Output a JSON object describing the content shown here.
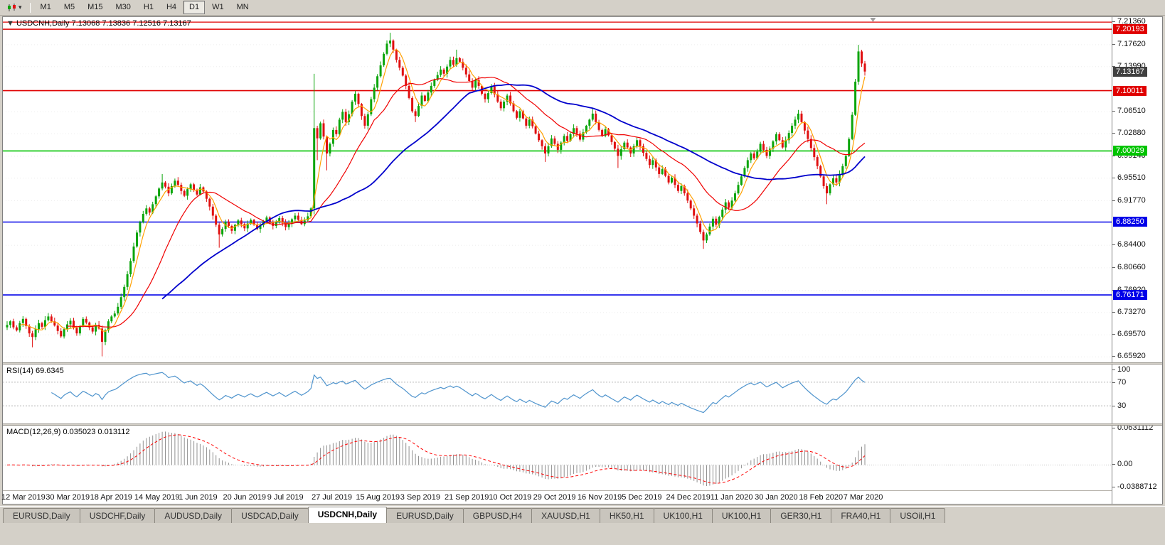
{
  "toolbar": {
    "timeframes": [
      "M1",
      "M5",
      "M15",
      "M30",
      "H1",
      "H4",
      "D1",
      "W1",
      "MN"
    ],
    "active_timeframe": "D1"
  },
  "chart": {
    "symbol": "USDCNH",
    "period": "Daily",
    "info_line": "USDCNH,Daily 7.13068 7.13836 7.12516 7.13167",
    "open": "7.13068",
    "high": "7.13836",
    "low": "7.12516",
    "close": "7.13167"
  },
  "colors": {
    "candle_up": "#0ba50b",
    "candle_down": "#e01010",
    "macd_hist": "#909090",
    "macd_signal": "#ff0000",
    "badge_current_bg": "#404040"
  },
  "chart_data": {
    "type": "candlestick+indicators",
    "symbol": "USDCNH",
    "timeframe": "Daily",
    "open0": 6.708,
    "closes": [
      6.712,
      6.718,
      6.708,
      6.703,
      6.715,
      6.722,
      6.71,
      6.698,
      6.692,
      6.705,
      6.715,
      6.709,
      6.72,
      6.726,
      6.718,
      6.711,
      6.702,
      6.693,
      6.705,
      6.713,
      6.719,
      6.707,
      6.698,
      6.71,
      6.722,
      6.716,
      6.708,
      6.701,
      6.712,
      6.706,
      6.684,
      6.703,
      6.718,
      6.726,
      6.731,
      6.742,
      6.758,
      6.775,
      6.796,
      6.818,
      6.842,
      6.865,
      6.882,
      6.896,
      6.905,
      6.898,
      6.912,
      6.925,
      6.938,
      6.948,
      6.941,
      6.93,
      6.942,
      6.951,
      6.944,
      6.934,
      6.926,
      6.937,
      6.945,
      6.936,
      6.928,
      6.94,
      6.933,
      6.921,
      6.908,
      6.893,
      6.878,
      6.862,
      6.871,
      6.883,
      6.876,
      6.868,
      6.878,
      6.885,
      6.879,
      6.872,
      6.88,
      6.886,
      6.878,
      6.871,
      6.877,
      6.884,
      6.89,
      6.883,
      6.876,
      6.882,
      6.889,
      6.881,
      6.874,
      6.88,
      6.887,
      6.893,
      6.886,
      6.879,
      6.885,
      6.892,
      6.905,
      7.038,
      7.021,
      7.046,
      7.024,
      6.996,
      7.012,
      7.035,
      7.028,
      7.052,
      7.065,
      7.048,
      7.061,
      7.082,
      7.095,
      7.078,
      7.058,
      7.042,
      7.061,
      7.086,
      7.105,
      7.124,
      7.142,
      7.161,
      7.178,
      7.183,
      7.168,
      7.151,
      7.138,
      7.125,
      7.108,
      7.088,
      7.066,
      7.058,
      7.075,
      7.092,
      7.083,
      7.097,
      7.108,
      7.118,
      7.126,
      7.135,
      7.128,
      7.14,
      7.151,
      7.143,
      7.154,
      7.148,
      7.138,
      7.127,
      7.116,
      7.105,
      7.118,
      7.108,
      7.095,
      7.086,
      7.096,
      7.107,
      7.094,
      7.082,
      7.071,
      7.082,
      7.092,
      7.079,
      7.066,
      7.055,
      7.066,
      7.054,
      7.042,
      7.052,
      7.041,
      7.029,
      7.018,
      7.008,
      6.996,
      7.008,
      7.021,
      7.012,
      7.002,
      7.014,
      7.025,
      7.017,
      7.028,
      7.038,
      7.029,
      7.019,
      7.031,
      7.042,
      7.052,
      7.062,
      7.048,
      7.035,
      7.025,
      7.036,
      7.026,
      7.015,
      7.004,
      6.992,
      7.003,
      7.014,
      7.006,
      6.996,
      7.008,
      7.018,
      7.008,
      6.997,
      6.987,
      6.977,
      6.985,
      6.973,
      6.962,
      6.97,
      6.959,
      6.948,
      6.956,
      6.944,
      6.934,
      6.942,
      6.93,
      6.918,
      6.905,
      6.893,
      6.88,
      6.866,
      6.852,
      6.862,
      6.875,
      6.888,
      6.878,
      6.891,
      6.903,
      6.915,
      6.906,
      6.918,
      6.93,
      6.944,
      6.958,
      6.972,
      6.985,
      6.996,
      6.988,
      6.999,
      7.012,
      7.002,
      6.992,
      7.004,
      7.016,
      7.028,
      7.018,
      7.006,
      7.018,
      7.03,
      7.042,
      7.052,
      7.062,
      7.048,
      7.034,
      7.02,
      7.005,
      6.99,
      6.975,
      6.958,
      6.942,
      6.93,
      6.945,
      6.955,
      6.948,
      6.962,
      6.975,
      6.992,
      7.02,
      7.06,
      7.115,
      7.165,
      7.145,
      7.1317
    ],
    "wick_overrides": {
      "8": {
        "l": 6.675
      },
      "30": {
        "l": 6.66
      },
      "49": {
        "h": 6.962
      },
      "67": {
        "l": 6.84
      },
      "97": {
        "h": 7.128,
        "l": 6.895
      },
      "98": {
        "l": 6.985
      },
      "101": {
        "l": 6.968
      },
      "121": {
        "h": 7.196
      },
      "129": {
        "l": 7.048
      },
      "142": {
        "h": 7.168
      },
      "170": {
        "l": 6.982
      },
      "185": {
        "h": 7.07
      },
      "193": {
        "l": 6.972
      },
      "220": {
        "l": 6.838
      },
      "250": {
        "h": 7.068
      },
      "259": {
        "l": 6.912
      },
      "269": {
        "h": 7.176
      },
      "271": {
        "l": 7.125
      }
    },
    "price_axis": {
      "min": 6.65,
      "max": 7.222,
      "ticks": [
        "7.21360",
        "7.17620",
        "7.13990",
        "7.06510",
        "7.02880",
        "6.99140",
        "6.95510",
        "6.91770",
        "6.84400",
        "6.80660",
        "6.76920",
        "6.73270",
        "6.69570",
        "6.65920"
      ]
    },
    "levels": [
      {
        "price": 7.2136,
        "color": "#e00000",
        "width": 1.3,
        "badge": null
      },
      {
        "price": 7.20193,
        "color": "#e00000",
        "width": 1.5,
        "badge": "7.20193"
      },
      {
        "price": 7.10011,
        "color": "#e00000",
        "width": 1.6,
        "badge": "7.10011"
      },
      {
        "price": 7.00029,
        "color": "#00c400",
        "width": 1.6,
        "badge": "7.00029"
      },
      {
        "price": 6.8825,
        "color": "#0000e8",
        "width": 1.6,
        "badge": "6.88250"
      },
      {
        "price": 6.76171,
        "color": "#0000e8",
        "width": 1.6,
        "badge": "6.76171"
      }
    ],
    "current_price": {
      "value": 7.13167,
      "label": "7.13167"
    },
    "moving_averages": [
      {
        "period": 5,
        "color": "#ffa000",
        "width": 1.2
      },
      {
        "period": 20,
        "color": "#f00000",
        "width": 1.2
      },
      {
        "period": 50,
        "color": "#0000cc",
        "width": 1.8
      }
    ],
    "date_labels": [
      "12 Mar 2019",
      "30 Mar 2019",
      "18 Apr 2019",
      "14 May 2019",
      "1 Jun 2019",
      "20 Jun 2019",
      "9 Jul 2019",
      "27 Jul 2019",
      "15 Aug 2019",
      "3 Sep 2019",
      "21 Sep 2019",
      "10 Oct 2019",
      "29 Oct 2019",
      "16 Nov 2019",
      "5 Dec 2019",
      "24 Dec 2019",
      "11 Jan 2020",
      "30 Jan 2020",
      "18 Feb 2020",
      "7 Mar 2020"
    ],
    "label_bar_indices": [
      0,
      14,
      28,
      42,
      56,
      70,
      84,
      98,
      112,
      126,
      140,
      154,
      168,
      182,
      196,
      210,
      224,
      238,
      252,
      266
    ],
    "rsi": {
      "label": "RSI(14) 69.6345",
      "period": 14,
      "value": 69.6345,
      "levels": [
        70,
        30
      ],
      "axis_labels": [
        {
          "text": "100",
          "value": 100
        },
        {
          "text": "70",
          "value": 70
        },
        {
          "text": "30",
          "value": 30
        }
      ],
      "color": "#4f94cd"
    },
    "macd": {
      "label": "MACD(12,26,9) 0.035023 0.013112",
      "fast": 12,
      "slow": 26,
      "signal": 9,
      "main_value": 0.035023,
      "signal_value": 0.013112,
      "axis_labels": [
        "0.0631112",
        "0.00",
        "-0.0388712"
      ],
      "axis_values": [
        0.0631112,
        0,
        -0.0388712
      ]
    }
  },
  "tabs": {
    "items": [
      "EURUSD,Daily",
      "USDCHF,Daily",
      "AUDUSD,Daily",
      "USDCAD,Daily",
      "USDCNH,Daily",
      "EURUSD,Daily",
      "GBPUSD,H4",
      "XAUUSD,H1",
      "HK50,H1",
      "UK100,H1",
      "UK100,H1",
      "GER30,H1",
      "FRA40,H1",
      "USOil,H1"
    ],
    "active_index": 4
  }
}
